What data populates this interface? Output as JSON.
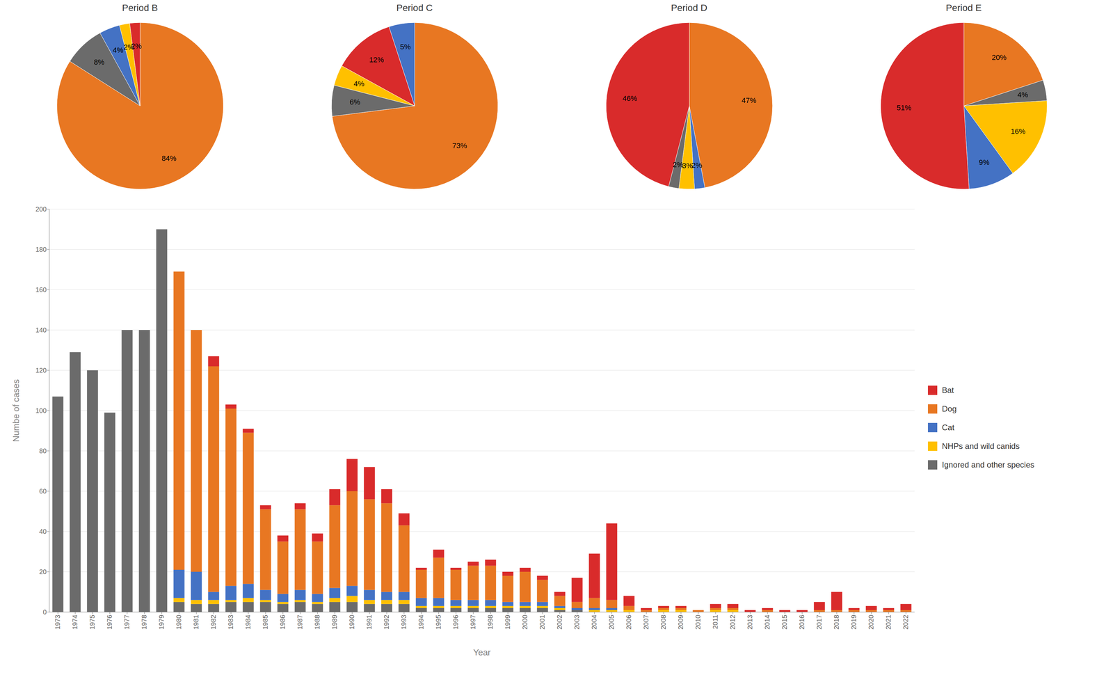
{
  "chart_data": [
    {
      "type": "bar",
      "stacked": true,
      "grid": true,
      "legend": "right",
      "xlabel": "Year",
      "ylabel": "Numbe of cases",
      "categories": [
        "1973",
        "1974",
        "1975",
        "1976",
        "1977",
        "1978",
        "1979",
        "1980",
        "1981",
        "1982",
        "1983",
        "1984",
        "1985",
        "1986",
        "1987",
        "1988",
        "1989",
        "1990",
        "1991",
        "1992",
        "1993",
        "1994",
        "1995",
        "1996",
        "1997",
        "1998",
        "1999",
        "2000",
        "2001",
        "2002",
        "2003",
        "2004",
        "2005",
        "2006",
        "2007",
        "2008",
        "2009",
        "2010",
        "2011",
        "2012",
        "2013",
        "2014",
        "2015",
        "2016",
        "2017",
        "2018",
        "2019",
        "2020",
        "2021",
        "2022"
      ],
      "series": [
        {
          "name": "Ignored and other species",
          "color": "#6B6B6B",
          "values": [
            107,
            129,
            120,
            99,
            140,
            140,
            190,
            5,
            4,
            4,
            5,
            5,
            5,
            4,
            5,
            4,
            5,
            5,
            4,
            4,
            4,
            2,
            2,
            2,
            2,
            2,
            2,
            2,
            2,
            1,
            1,
            0,
            0,
            0,
            0,
            0,
            0,
            0,
            0,
            0,
            0,
            0,
            0,
            0,
            0,
            0,
            0,
            0,
            0,
            0
          ]
        },
        {
          "name": "NHPs and wild canids",
          "color": "#FFC000",
          "values": [
            0,
            0,
            0,
            0,
            0,
            0,
            0,
            2,
            2,
            2,
            1,
            2,
            1,
            1,
            1,
            1,
            2,
            3,
            2,
            2,
            2,
            1,
            1,
            1,
            1,
            1,
            1,
            1,
            1,
            1,
            0,
            1,
            1,
            1,
            0,
            1,
            1,
            0,
            1,
            1,
            0,
            0,
            0,
            0,
            0,
            0,
            0,
            0,
            0,
            0
          ]
        },
        {
          "name": "Cat",
          "color": "#4472C4",
          "values": [
            0,
            0,
            0,
            0,
            0,
            0,
            0,
            14,
            14,
            4,
            7,
            7,
            5,
            4,
            5,
            4,
            5,
            5,
            5,
            4,
            4,
            4,
            4,
            3,
            3,
            3,
            2,
            2,
            2,
            1,
            1,
            1,
            1,
            0,
            0,
            0,
            0,
            0,
            0,
            0,
            0,
            0,
            0,
            0,
            0,
            0,
            0,
            0,
            0,
            0
          ]
        },
        {
          "name": "Dog",
          "color": "#E87722",
          "values": [
            0,
            0,
            0,
            0,
            0,
            0,
            0,
            148,
            120,
            112,
            88,
            75,
            40,
            26,
            40,
            26,
            41,
            47,
            45,
            44,
            33,
            14,
            20,
            15,
            17,
            17,
            13,
            15,
            11,
            5,
            3,
            5,
            4,
            2,
            1,
            1,
            1,
            1,
            1,
            1,
            0,
            1,
            0,
            0,
            1,
            1,
            1,
            1,
            1,
            1
          ]
        },
        {
          "name": "Bat",
          "color": "#D92B2B",
          "values": [
            0,
            0,
            0,
            0,
            0,
            0,
            0,
            0,
            0,
            5,
            2,
            2,
            2,
            3,
            3,
            4,
            8,
            16,
            16,
            7,
            6,
            1,
            4,
            1,
            2,
            3,
            2,
            2,
            2,
            2,
            12,
            22,
            38,
            5,
            1,
            1,
            1,
            0,
            2,
            2,
            1,
            1,
            1,
            1,
            4,
            9,
            1,
            2,
            1,
            3
          ]
        }
      ],
      "ylim": [
        0,
        200
      ],
      "yticks": [
        0,
        20,
        40,
        60,
        80,
        100,
        120,
        140,
        160,
        180,
        200
      ]
    },
    {
      "type": "pie",
      "title": "Period B",
      "data_labels": true,
      "values": [
        84,
        8,
        4,
        2,
        2
      ],
      "value_labels": [
        "84%",
        "8%",
        "4%",
        "2%",
        "2%"
      ],
      "colors": [
        "#E87722",
        "#6B6B6B",
        "#4472C4",
        "#FFC000",
        "#D92B2B"
      ]
    },
    {
      "type": "pie",
      "title": "Period C",
      "data_labels": true,
      "values": [
        73,
        6,
        4,
        12,
        5
      ],
      "value_labels": [
        "73%",
        "6%",
        "4%",
        "12%",
        "5%"
      ],
      "colors": [
        "#E87722",
        "#6B6B6B",
        "#FFC000",
        "#D92B2B",
        "#4472C4"
      ]
    },
    {
      "type": "pie",
      "title": "Period D",
      "data_labels": true,
      "values": [
        47,
        2,
        3,
        2,
        46
      ],
      "value_labels": [
        "47%",
        "2%",
        "3%",
        "2%",
        "46%"
      ],
      "colors": [
        "#E87722",
        "#4472C4",
        "#FFC000",
        "#6B6B6B",
        "#D92B2B"
      ]
    },
    {
      "type": "pie",
      "title": "Period E",
      "data_labels": true,
      "values": [
        20,
        4,
        16,
        9,
        51
      ],
      "value_labels": [
        "20%",
        "4%",
        "16%",
        "9%",
        "51%"
      ],
      "colors": [
        "#E87722",
        "#6B6B6B",
        "#FFC000",
        "#4472C4",
        "#D92B2B"
      ]
    }
  ]
}
